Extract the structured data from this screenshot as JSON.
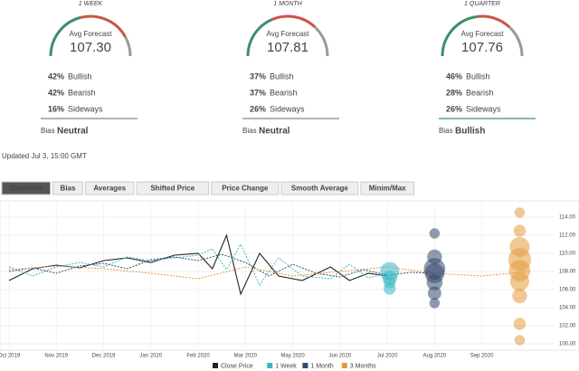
{
  "gauges": [
    {
      "period": "1 WEEK",
      "caption": "Avg Forecast",
      "forecast": "107.30",
      "stats": [
        {
          "pct": {
            "value": 42,
            "label": "42%"
          },
          "name": "Bullish"
        },
        {
          "pct": {
            "value": 42,
            "label": "42%"
          },
          "name": "Bearish"
        },
        {
          "pct": {
            "value": 16,
            "label": "16%"
          },
          "name": "Sideways"
        }
      ],
      "bias_label": "Bias",
      "bias": "Neutral"
    },
    {
      "period": "1 MONTH",
      "caption": "Avg Forecast",
      "forecast": "107.81",
      "stats": [
        {
          "pct": {
            "value": 37,
            "label": "37%"
          },
          "name": "Bullish"
        },
        {
          "pct": {
            "value": 37,
            "label": "37%"
          },
          "name": "Bearish"
        },
        {
          "pct": {
            "value": 26,
            "label": "26%"
          },
          "name": "Sideways"
        }
      ],
      "bias_label": "Bias",
      "bias": "Neutral"
    },
    {
      "period": "1 QUARTER",
      "caption": "Avg Forecast",
      "forecast": "107.76",
      "stats": [
        {
          "pct": {
            "value": 46,
            "label": "46%"
          },
          "name": "Bullish"
        },
        {
          "pct": {
            "value": 28,
            "label": "28%"
          },
          "name": "Bearish"
        },
        {
          "pct": {
            "value": 26,
            "label": "26%"
          },
          "name": "Sideways"
        }
      ],
      "bias_label": "Bias",
      "bias": "Bullish"
    }
  ],
  "stat_colors": [
    "#3a8f6a",
    "#c9553f",
    "#999999"
  ],
  "updated": "Updated Jul 3, 15:00 GMT",
  "tabs": [
    "Overview",
    "Bias",
    "Averages",
    "Shifted Price",
    "Price Change",
    "Smooth Average",
    "Minim/Max"
  ],
  "chart_data": {
    "type": "line",
    "xlim": [
      0,
      11.5
    ],
    "ylim": [
      99.5,
      115.5
    ],
    "xticks": [
      {
        "value": 0,
        "label": "Oct 2019"
      },
      {
        "value": 1,
        "label": "Nov 2019"
      },
      {
        "value": 2,
        "label": "Dec 2019"
      },
      {
        "value": 3,
        "label": "Jan 2020"
      },
      {
        "value": 4,
        "label": "Feb 2020"
      },
      {
        "value": 5,
        "label": "Mar 2020"
      },
      {
        "value": 6,
        "label": "May 2020"
      },
      {
        "value": 7,
        "label": "Jun 2020"
      },
      {
        "value": 8,
        "label": "Jul 2020"
      },
      {
        "value": 9,
        "label": "Aug 2020"
      },
      {
        "value": 10,
        "label": "Sep 2020"
      }
    ],
    "yticks": [
      {
        "value": 100,
        "label": "100.00"
      },
      {
        "value": 102,
        "label": "102.00"
      },
      {
        "value": 104,
        "label": "104.00"
      },
      {
        "value": 106,
        "label": "106.00"
      },
      {
        "value": 108,
        "label": "108.00"
      },
      {
        "value": 110,
        "label": "110.00"
      },
      {
        "value": 112,
        "label": "112.00"
      },
      {
        "value": 114,
        "label": "114.00"
      }
    ],
    "grid": true,
    "series": [
      {
        "name": "Close Price",
        "color": "#222222",
        "dash": false,
        "x": [
          0,
          0.5,
          1,
          1.5,
          2,
          2.5,
          3,
          3.5,
          4,
          4.3,
          4.6,
          4.9,
          5.3,
          5.7,
          6.2,
          6.8,
          7.2,
          7.6,
          8
        ],
        "values": [
          107,
          108.3,
          108.7,
          108.4,
          109.2,
          109.5,
          109.0,
          109.8,
          110,
          108.3,
          112,
          105.5,
          110,
          107.5,
          107,
          108.5,
          107,
          107.8,
          107.5
        ]
      },
      {
        "name": "1 Week",
        "color": "#3cb8c4",
        "dash": true,
        "x": [
          0,
          0.5,
          1,
          1.5,
          2,
          2.5,
          3,
          3.5,
          4,
          4.3,
          4.6,
          4.9,
          5.3,
          5.7,
          6.2,
          6.8,
          7.2,
          7.6,
          8
        ],
        "values": [
          108.5,
          107.5,
          108.5,
          109,
          108.5,
          109.6,
          109.2,
          109.5,
          109.8,
          110.5,
          108.2,
          111,
          106.5,
          109.5,
          107.5,
          107.2,
          108.8,
          107.3,
          107.8
        ]
      },
      {
        "name": "1 Month",
        "color": "#34496e",
        "dash": true,
        "x": [
          0,
          0.5,
          1,
          1.5,
          2,
          2.5,
          3,
          3.5,
          4,
          4.5,
          5,
          5.5,
          6,
          6.5,
          7,
          7.5,
          8,
          8.5,
          9
        ],
        "values": [
          108,
          108.4,
          107.8,
          108.6,
          108.9,
          108.3,
          109.3,
          109.6,
          109.2,
          109.9,
          109,
          107.5,
          108.8,
          107.8,
          107.4,
          108.2,
          107.6,
          107.9,
          107.8
        ]
      },
      {
        "name": "3 Months",
        "color": "#e39a3c",
        "dash": true,
        "x": [
          0,
          1,
          2,
          3,
          4,
          5,
          6,
          7,
          8,
          9,
          10,
          11
        ],
        "values": [
          108.2,
          108.6,
          108.3,
          107.8,
          107.2,
          108.5,
          107.5,
          108,
          108.5,
          107.8,
          107.5,
          108
        ]
      }
    ],
    "bubbles": [
      {
        "series": 1,
        "x": 8.05,
        "points": [
          {
            "y": 108,
            "size": 9
          },
          {
            "y": 107.3,
            "size": 5
          },
          {
            "y": 106.8,
            "size": 3
          },
          {
            "y": 106.1,
            "size": 3
          }
        ]
      },
      {
        "series": 2,
        "x": 9.0,
        "points": [
          {
            "y": 112.2,
            "size": 2
          },
          {
            "y": 109.6,
            "size": 5
          },
          {
            "y": 108.3,
            "size": 12
          },
          {
            "y": 107.8,
            "size": 10
          },
          {
            "y": 106.8,
            "size": 6
          },
          {
            "y": 105.6,
            "size": 4
          },
          {
            "y": 104.5,
            "size": 2
          }
        ]
      },
      {
        "series": 3,
        "x": 10.8,
        "points": [
          {
            "y": 114.5,
            "size": 2
          },
          {
            "y": 112.5,
            "size": 3
          },
          {
            "y": 110.7,
            "size": 10
          },
          {
            "y": 109.3,
            "size": 14
          },
          {
            "y": 108.1,
            "size": 12
          },
          {
            "y": 106.9,
            "size": 9
          },
          {
            "y": 105.3,
            "size": 5
          },
          {
            "y": 102.2,
            "size": 3
          },
          {
            "y": 100.4,
            "size": 2
          }
        ]
      }
    ]
  }
}
